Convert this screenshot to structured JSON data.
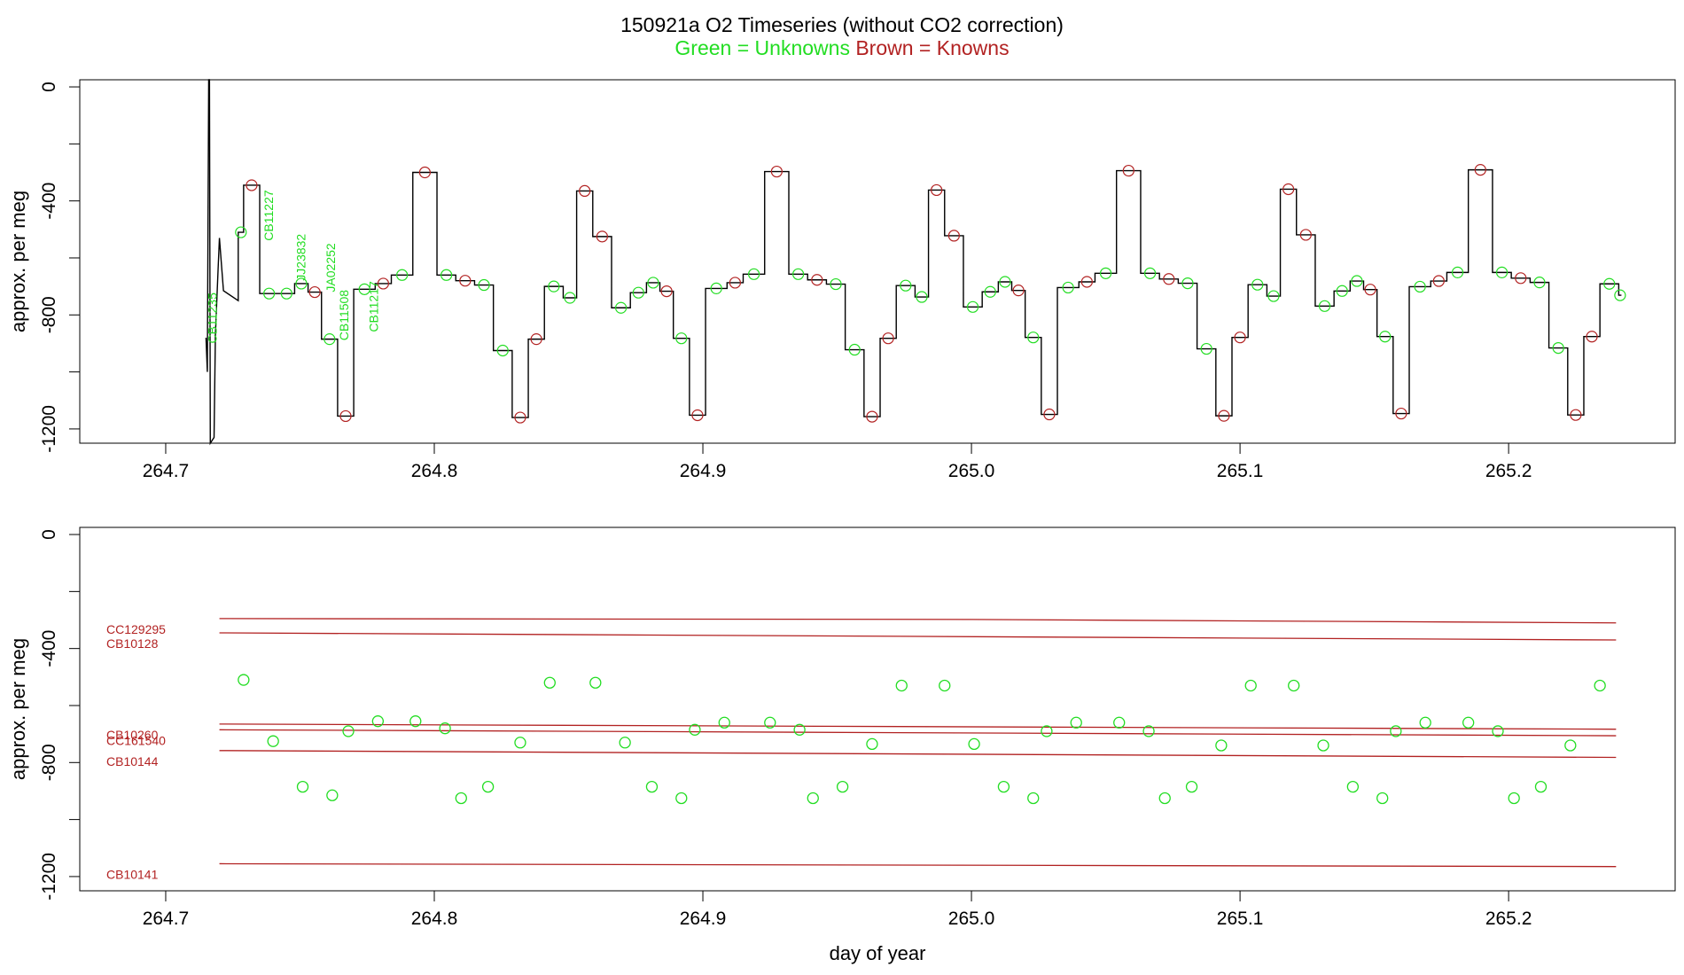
{
  "title": "150921a   O2 Timeseries (without CO2 correction)",
  "subtitle_unknowns": "Green = Unknowns",
  "subtitle_knowns": "Brown = Knowns",
  "colors": {
    "unknowns": "#22dd22",
    "knowns": "#b22222",
    "line": "#000000"
  },
  "chart_data": [
    {
      "type": "line",
      "name": "timeseries",
      "ylabel": "approx. per meg",
      "xlabel": "",
      "xlim": [
        264.668,
        265.262
      ],
      "ylim": [
        -1250,
        25
      ],
      "x_ticks": [
        "264.7",
        "264.8",
        "264.9",
        "265.0",
        "265.1",
        "265.2"
      ],
      "x_tick_values": [
        264.7,
        264.8,
        264.9,
        265.0,
        265.1,
        265.2
      ],
      "y_ticks": [
        "0",
        "-400",
        "-800",
        "-1200"
      ],
      "y_tick_values": [
        0,
        -400,
        -800,
        -1200
      ],
      "annotations": [
        {
          "text": "CB11235",
          "x": 264.719,
          "y": -900
        },
        {
          "text": "CB11227",
          "x": 264.74,
          "y": -540
        },
        {
          "text": "JJ23832",
          "x": 264.752,
          "y": -680
        },
        {
          "text": "JA02252",
          "x": 264.763,
          "y": -720
        },
        {
          "text": "CB11508",
          "x": 264.768,
          "y": -890
        },
        {
          "text": "CB11217",
          "x": 264.779,
          "y": -860
        }
      ],
      "note": "Measured trace steps between cylinder levels; circles mark averaged values"
    },
    {
      "type": "scatter",
      "name": "assigned",
      "ylabel": "approx. per meg",
      "xlabel": "day of year",
      "xlim": [
        264.668,
        265.262
      ],
      "ylim": [
        -1250,
        25
      ],
      "x_ticks": [
        "264.7",
        "264.8",
        "264.9",
        "265.0",
        "265.1",
        "265.2"
      ],
      "x_tick_values": [
        264.7,
        264.8,
        264.9,
        265.0,
        265.1,
        265.2
      ],
      "y_ticks": [
        "0",
        "-400",
        "-800",
        "-1200"
      ],
      "y_tick_values": [
        0,
        -400,
        -800,
        -1200
      ],
      "reference_lines": [
        {
          "name": "CC129295",
          "x": [
            264.72,
            265.0,
            265.24
          ],
          "y": [
            -295,
            -298,
            -310
          ]
        },
        {
          "name": "CB10128",
          "x": [
            264.72,
            265.24
          ],
          "y": [
            -345,
            -370
          ]
        },
        {
          "name": "CB10260",
          "x": [
            264.72,
            265.24
          ],
          "y": [
            -665,
            -683
          ]
        },
        {
          "name": "CC161540",
          "x": [
            264.72,
            265.24
          ],
          "y": [
            -685,
            -706
          ]
        },
        {
          "name": "CB10144",
          "x": [
            264.72,
            265.24
          ],
          "y": [
            -758,
            -782
          ]
        },
        {
          "name": "CB10141",
          "x": [
            264.72,
            265.24
          ],
          "y": [
            -1155,
            -1165
          ]
        }
      ],
      "unknowns": {
        "x": [
          264.729,
          264.74,
          264.751,
          264.762,
          264.768,
          264.779,
          264.793,
          264.804,
          264.81,
          264.82,
          264.832,
          264.843,
          264.86,
          264.871,
          264.881,
          264.892,
          264.897,
          264.908,
          264.925,
          264.936,
          264.941,
          264.952,
          264.963,
          264.974,
          264.99,
          265.001,
          265.012,
          265.023,
          265.028,
          265.039,
          265.055,
          265.066,
          265.072,
          265.082,
          265.093,
          265.104,
          265.12,
          265.131,
          265.142,
          265.153,
          265.158,
          265.169,
          265.185,
          265.196,
          265.202,
          265.212,
          265.223,
          265.234
        ],
        "y": [
          -510,
          -725,
          -885,
          -915,
          -690,
          -655,
          -655,
          -680,
          -925,
          -885,
          -730,
          -520,
          -520,
          -730,
          -885,
          -925,
          -685,
          -660,
          -660,
          -685,
          -925,
          -885,
          -735,
          -530,
          -530,
          -735,
          -885,
          -925,
          -690,
          -660,
          -660,
          -690,
          -925,
          -885,
          -740,
          -530,
          -530,
          -740,
          -885,
          -925,
          -690,
          -660,
          -660,
          -690,
          -925,
          -885,
          -740,
          -530
        ]
      }
    }
  ]
}
